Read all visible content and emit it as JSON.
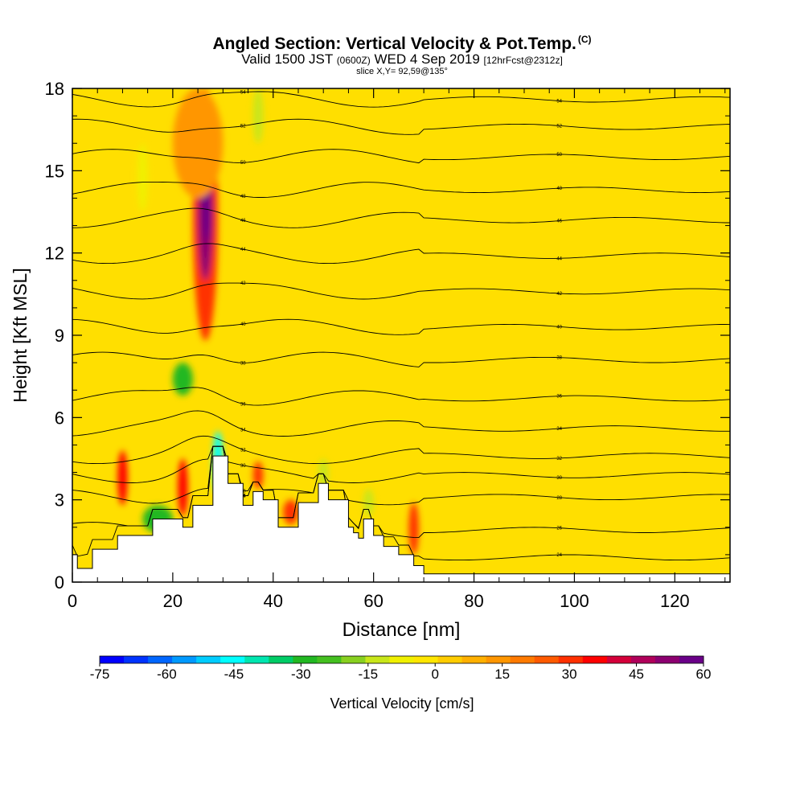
{
  "header": {
    "title": "Angled Section: Vertical Velocity & Pot.Temp.",
    "title_mark": "(C)",
    "valid_prefix": "Valid 1500 JST",
    "valid_zulu": "(0600Z)",
    "valid_date": "WED 4 Sep 2019",
    "forecast_tag": "[12hrFcst@2312z]",
    "slice": "slice X,Y= 92,59@135°"
  },
  "chart_data": {
    "type": "heatmap",
    "xlabel": "Distance [nm]",
    "ylabel": "Height [Kft MSL]",
    "xlim": [
      0,
      131
    ],
    "ylim": [
      0,
      18
    ],
    "x_ticks": [
      "0",
      "20",
      "40",
      "60",
      "80",
      "100",
      "120"
    ],
    "y_ticks": [
      "0",
      "3",
      "6",
      "9",
      "12",
      "15",
      "18"
    ],
    "colorbar": {
      "label": "Vertical Velocity [cm/s]",
      "ticks": [
        "-75",
        "-60",
        "-45",
        "-30",
        "-15",
        "0",
        "15",
        "30",
        "45",
        "60"
      ],
      "range": [
        -75,
        60
      ],
      "colors": [
        "#0000ff",
        "#0033ff",
        "#0066ff",
        "#0099ff",
        "#00ccff",
        "#00ffff",
        "#00e6b0",
        "#00cc66",
        "#22b822",
        "#44c020",
        "#88d020",
        "#c8e61a",
        "#f0f000",
        "#ffe600",
        "#ffcc00",
        "#ffb000",
        "#ff9600",
        "#ff7a00",
        "#ff5a00",
        "#ff3000",
        "#ff0000",
        "#d4003a",
        "#b0005a",
        "#8c0070",
        "#6a0088"
      ]
    },
    "background_color": "#ffdf00",
    "terrain": [
      [
        0,
        1.0
      ],
      [
        1,
        1.0
      ],
      [
        1,
        0.5
      ],
      [
        4,
        0.5
      ],
      [
        4,
        1.2
      ],
      [
        9,
        1.2
      ],
      [
        9,
        1.7
      ],
      [
        16,
        1.7
      ],
      [
        16,
        2.3
      ],
      [
        22,
        2.3
      ],
      [
        22,
        2.0
      ],
      [
        24,
        2.0
      ],
      [
        24,
        2.8
      ],
      [
        28,
        2.8
      ],
      [
        28,
        4.6
      ],
      [
        31,
        4.6
      ],
      [
        31,
        3.6
      ],
      [
        34,
        3.6
      ],
      [
        34,
        2.8
      ],
      [
        36,
        2.8
      ],
      [
        36,
        3.3
      ],
      [
        38,
        3.3
      ],
      [
        38,
        3.0
      ],
      [
        41,
        3.0
      ],
      [
        41,
        2.0
      ],
      [
        45,
        2.0
      ],
      [
        45,
        2.9
      ],
      [
        49,
        2.9
      ],
      [
        49,
        3.6
      ],
      [
        51,
        3.6
      ],
      [
        51,
        3.0
      ],
      [
        55,
        3.0
      ],
      [
        55,
        2.0
      ],
      [
        56,
        2.0
      ],
      [
        56,
        1.8
      ],
      [
        57,
        1.8
      ],
      [
        57,
        1.6
      ],
      [
        58,
        1.6
      ],
      [
        58,
        2.3
      ],
      [
        60,
        2.3
      ],
      [
        60,
        1.7
      ],
      [
        62,
        1.7
      ],
      [
        62,
        1.3
      ],
      [
        65,
        1.3
      ],
      [
        65,
        1.0
      ],
      [
        68,
        1.0
      ],
      [
        68,
        0.6
      ],
      [
        70,
        0.6
      ],
      [
        70,
        0.3
      ],
      [
        131,
        0.3
      ]
    ],
    "velocity_cells": [
      {
        "x": [
          24,
          29
        ],
        "y": [
          8.8,
          18
        ],
        "value": 30
      },
      {
        "x": [
          25,
          28
        ],
        "y": [
          11,
          16
        ],
        "value": 50
      },
      {
        "x": [
          26,
          27.5
        ],
        "y": [
          12.5,
          14.5
        ],
        "value": 60
      },
      {
        "x": [
          20,
          30
        ],
        "y": [
          14,
          18
        ],
        "value": 15
      },
      {
        "x": [
          9,
          11
        ],
        "y": [
          2.8,
          4.8
        ],
        "value": 35
      },
      {
        "x": [
          21,
          23
        ],
        "y": [
          2.4,
          4.5
        ],
        "value": 35
      },
      {
        "x": [
          36,
          38
        ],
        "y": [
          3.4,
          4.4
        ],
        "value": 32
      },
      {
        "x": [
          42,
          45
        ],
        "y": [
          2.1,
          3.0
        ],
        "value": 30
      },
      {
        "x": [
          67,
          69
        ],
        "y": [
          1.0,
          2.9
        ],
        "value": 28
      },
      {
        "x": [
          20,
          24
        ],
        "y": [
          6.8,
          8.0
        ],
        "value": -30
      },
      {
        "x": [
          28,
          30
        ],
        "y": [
          3.2,
          5.5
        ],
        "value": -45
      },
      {
        "x": [
          14,
          20
        ],
        "y": [
          1.8,
          2.8
        ],
        "value": -30
      },
      {
        "x": [
          36,
          38
        ],
        "y": [
          16,
          18
        ],
        "value": -15
      },
      {
        "x": [
          13,
          15
        ],
        "y": [
          13.5,
          16
        ],
        "value": -10
      },
      {
        "x": [
          49,
          51
        ],
        "y": [
          3.4,
          4.5
        ],
        "value": -15
      },
      {
        "x": [
          58,
          60
        ],
        "y": [
          2.4,
          3.4
        ],
        "value": -15
      }
    ],
    "theta_contours": [
      {
        "label": "24",
        "base": 0.9
      },
      {
        "label": "26",
        "base": 1.9
      },
      {
        "label": "28",
        "base": 3.1
      },
      {
        "label": "30",
        "base": 3.9
      },
      {
        "label": "32",
        "base": 4.6
      },
      {
        "label": "34",
        "base": 5.6
      },
      {
        "label": "36",
        "base": 6.7
      },
      {
        "label": "38",
        "base": 8.1
      },
      {
        "label": "40",
        "base": 9.3
      },
      {
        "label": "42",
        "base": 10.6
      },
      {
        "label": "44",
        "base": 11.9
      },
      {
        "label": "46",
        "base": 13.2
      },
      {
        "label": "48",
        "base": 14.3
      },
      {
        "label": "50",
        "base": 15.5
      },
      {
        "label": "52",
        "base": 16.6
      },
      {
        "label": "54",
        "base": 17.6
      }
    ]
  }
}
